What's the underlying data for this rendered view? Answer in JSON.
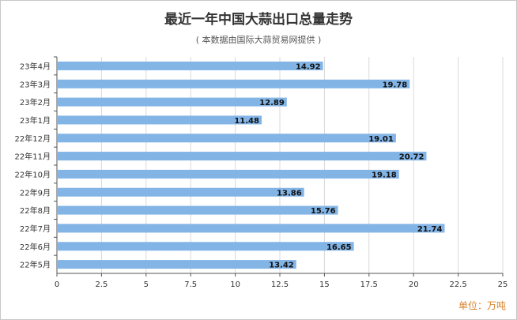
{
  "title": "最近一年中国大蒜出口总量走势",
  "subtitle": "( 本数据由国际大蒜贸易网提供 )",
  "unit_label": "单位：万吨",
  "colors": {
    "bar": "#82b4e6",
    "grid": "#d9d9d9",
    "axis": "#555555"
  },
  "chart_data": {
    "type": "bar",
    "orientation": "horizontal",
    "categories": [
      "23年4月",
      "23年3月",
      "23年2月",
      "23年1月",
      "22年12月",
      "22年11月",
      "22年10月",
      "22年9月",
      "22年8月",
      "22年7月",
      "22年6月",
      "22年5月"
    ],
    "values": [
      14.92,
      19.78,
      12.89,
      11.48,
      19.01,
      20.72,
      19.18,
      13.86,
      15.76,
      21.74,
      16.65,
      13.42
    ],
    "value_labels": [
      "14.92",
      "19.78",
      "12.89",
      "11.48",
      "19.01",
      "20.72",
      "19.18",
      "13.86",
      "15.76",
      "21.74",
      "16.65",
      "13.42"
    ],
    "x_ticks": [
      "0",
      "2.5",
      "5",
      "7.5",
      "10",
      "12.5",
      "15",
      "17.5",
      "20",
      "22.5",
      "25"
    ],
    "xlim": [
      0,
      25
    ],
    "grid": true,
    "legend": "none"
  }
}
